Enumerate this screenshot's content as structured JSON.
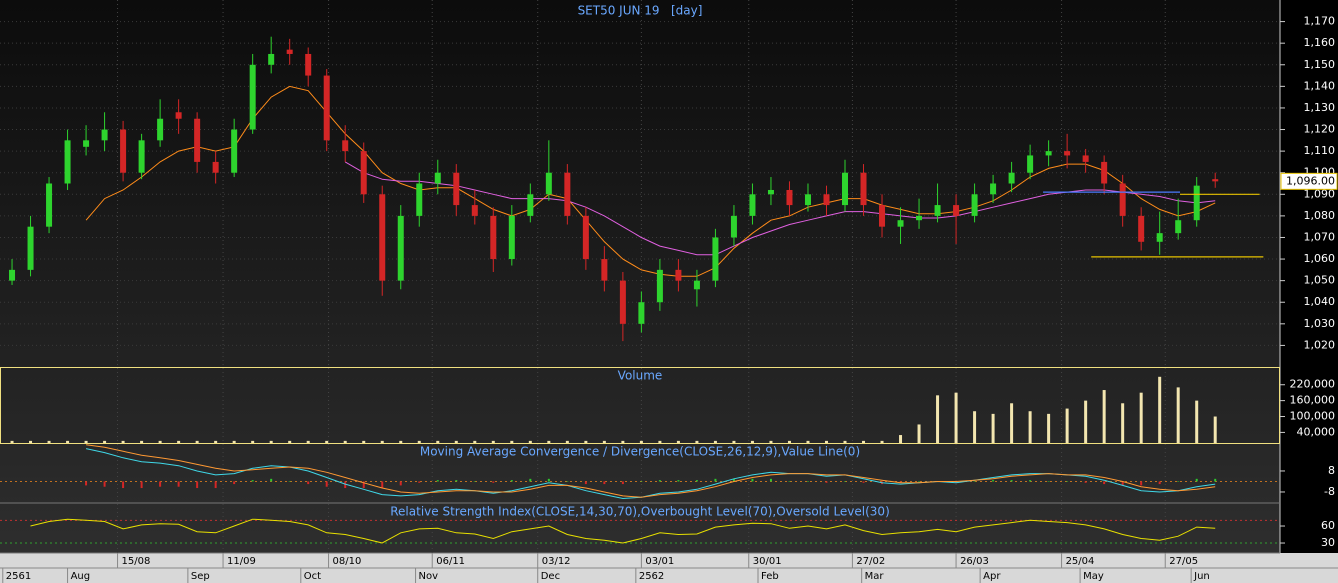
{
  "chart_data": [
    {
      "type": "candlestick",
      "title": "SET50 JUN 19   [day]",
      "candles": [
        [
          1050,
          1060,
          1048,
          1055
        ],
        [
          1055,
          1080,
          1052,
          1075
        ],
        [
          1075,
          1098,
          1072,
          1095
        ],
        [
          1095,
          1120,
          1092,
          1115
        ],
        [
          1112,
          1122,
          1108,
          1115
        ],
        [
          1115,
          1128,
          1110,
          1120
        ],
        [
          1120,
          1124,
          1096,
          1100
        ],
        [
          1100,
          1118,
          1097,
          1115
        ],
        [
          1115,
          1134,
          1112,
          1125
        ],
        [
          1128,
          1134,
          1118,
          1125
        ],
        [
          1125,
          1128,
          1100,
          1105
        ],
        [
          1105,
          1110,
          1095,
          1100
        ],
        [
          1100,
          1125,
          1098,
          1120
        ],
        [
          1120,
          1155,
          1118,
          1150
        ],
        [
          1150,
          1163,
          1146,
          1155
        ],
        [
          1157,
          1162,
          1150,
          1155
        ],
        [
          1155,
          1158,
          1140,
          1145
        ],
        [
          1145,
          1148,
          1110,
          1115
        ],
        [
          1115,
          1122,
          1105,
          1110
        ],
        [
          1110,
          1114,
          1086,
          1090
        ],
        [
          1090,
          1094,
          1043,
          1050
        ],
        [
          1050,
          1085,
          1046,
          1080
        ],
        [
          1080,
          1100,
          1075,
          1095
        ],
        [
          1095,
          1106,
          1090,
          1100
        ],
        [
          1100,
          1104,
          1080,
          1085
        ],
        [
          1085,
          1092,
          1076,
          1080
        ],
        [
          1080,
          1084,
          1054,
          1060
        ],
        [
          1060,
          1085,
          1057,
          1080
        ],
        [
          1080,
          1095,
          1077,
          1090
        ],
        [
          1090,
          1115,
          1087,
          1100
        ],
        [
          1100,
          1104,
          1076,
          1080
        ],
        [
          1080,
          1084,
          1055,
          1060
        ],
        [
          1060,
          1066,
          1045,
          1050
        ],
        [
          1050,
          1054,
          1022,
          1030
        ],
        [
          1030,
          1045,
          1026,
          1040
        ],
        [
          1040,
          1060,
          1036,
          1055
        ],
        [
          1055,
          1060,
          1045,
          1050
        ],
        [
          1046,
          1055,
          1038,
          1050
        ],
        [
          1050,
          1074,
          1047,
          1070
        ],
        [
          1070,
          1085,
          1066,
          1080
        ],
        [
          1080,
          1095,
          1076,
          1090
        ],
        [
          1090,
          1098,
          1085,
          1092
        ],
        [
          1092,
          1096,
          1080,
          1085
        ],
        [
          1085,
          1095,
          1082,
          1090
        ],
        [
          1090,
          1094,
          1080,
          1085
        ],
        [
          1085,
          1106,
          1082,
          1100
        ],
        [
          1100,
          1104,
          1080,
          1085
        ],
        [
          1085,
          1090,
          1070,
          1075
        ],
        [
          1075,
          1084,
          1067,
          1078
        ],
        [
          1078,
          1088,
          1074,
          1080
        ],
        [
          1080,
          1095,
          1077,
          1085
        ],
        [
          1085,
          1090,
          1067,
          1080
        ],
        [
          1080,
          1095,
          1077,
          1090
        ],
        [
          1090,
          1099,
          1086,
          1095
        ],
        [
          1095,
          1105,
          1091,
          1100
        ],
        [
          1100,
          1113,
          1097,
          1108
        ],
        [
          1108,
          1115,
          1103,
          1110
        ],
        [
          1110,
          1118,
          1102,
          1108
        ],
        [
          1108,
          1111,
          1100,
          1105
        ],
        [
          1105,
          1108,
          1090,
          1095
        ],
        [
          1095,
          1099,
          1075,
          1080
        ],
        [
          1080,
          1084,
          1064,
          1068
        ],
        [
          1068,
          1082,
          1062,
          1072
        ],
        [
          1072,
          1088,
          1069,
          1078
        ],
        [
          1078,
          1098,
          1075,
          1094
        ],
        [
          1097,
          1100,
          1093,
          1096
        ]
      ],
      "up_color": "#2ed42e",
      "down_color": "#d42626",
      "lines": [
        {
          "color": "#ff8c1a",
          "values": [
            null,
            null,
            null,
            null,
            1078,
            1088,
            1092,
            1098,
            1105,
            1110,
            1112,
            1110,
            1112,
            1125,
            1135,
            1140,
            1138,
            1128,
            1118,
            1110,
            1100,
            1095,
            1092,
            1093,
            1093,
            1088,
            1083,
            1080,
            1083,
            1090,
            1088,
            1078,
            1068,
            1060,
            1055,
            1053,
            1052,
            1052,
            1056,
            1065,
            1072,
            1078,
            1080,
            1084,
            1086,
            1088,
            1088,
            1085,
            1083,
            1081,
            1081,
            1082,
            1084,
            1087,
            1092,
            1098,
            1102,
            1104,
            1104,
            1101,
            1095,
            1088,
            1083,
            1080,
            1082,
            1086
          ]
        },
        {
          "color": "#e060e0",
          "values": [
            null,
            null,
            null,
            null,
            null,
            null,
            null,
            null,
            null,
            null,
            null,
            null,
            null,
            null,
            null,
            null,
            null,
            null,
            1105,
            1100,
            1097,
            1096,
            1096,
            1095,
            1094,
            1092,
            1090,
            1088,
            1088,
            1088,
            1087,
            1084,
            1080,
            1075,
            1070,
            1066,
            1064,
            1062,
            1062,
            1066,
            1070,
            1073,
            1076,
            1078,
            1080,
            1082,
            1082,
            1081,
            1080,
            1079,
            1079,
            1080,
            1082,
            1084,
            1086,
            1088,
            1090,
            1091,
            1092,
            1092,
            1091,
            1090,
            1089,
            1087,
            1086,
            1087
          ]
        }
      ],
      "levels": [
        {
          "value": 1091,
          "from": 55.7,
          "to": 63.1,
          "color": "#4a7bff"
        },
        {
          "value": 1090,
          "from": 63.1,
          "to": 67.4,
          "color": "#e6c200"
        },
        {
          "value": 1061,
          "from": 58.3,
          "to": 67.6,
          "color": "#e6c200"
        }
      ],
      "last_price": {
        "value": 1096,
        "label": "1,096.00"
      },
      "xlim": [
        -0.65,
        68.5
      ],
      "ylim": [
        1010,
        1180
      ],
      "yticks": [
        {
          "value": 1020,
          "label": "1,020"
        },
        {
          "value": 1030,
          "label": "1,030"
        },
        {
          "value": 1040,
          "label": "1,040"
        },
        {
          "value": 1050,
          "label": "1,050"
        },
        {
          "value": 1060,
          "label": "1,060"
        },
        {
          "value": 1070,
          "label": "1,070"
        },
        {
          "value": 1080,
          "label": "1,080"
        },
        {
          "value": 1090,
          "label": "1,090"
        },
        {
          "value": 1100,
          "label": "1,100"
        },
        {
          "value": 1110,
          "label": "1,110"
        },
        {
          "value": 1120,
          "label": "1,120"
        },
        {
          "value": 1130,
          "label": "1,130"
        },
        {
          "value": 1140,
          "label": "1,140"
        },
        {
          "value": 1150,
          "label": "1,150"
        },
        {
          "value": 1160,
          "label": "1,160"
        },
        {
          "value": 1170,
          "label": "1,170"
        }
      ],
      "xticks": [
        {
          "value": 5.7,
          "label": "15/08"
        },
        {
          "value": 11.4,
          "label": "11/09"
        },
        {
          "value": 17.1,
          "label": "08/10"
        },
        {
          "value": 22.7,
          "label": "06/11"
        },
        {
          "value": 28.4,
          "label": "03/12"
        },
        {
          "value": 34.0,
          "label": "03/01"
        },
        {
          "value": 39.8,
          "label": "30/01"
        },
        {
          "value": 45.4,
          "label": "27/02"
        },
        {
          "value": 51.0,
          "label": "26/03"
        },
        {
          "value": 56.7,
          "label": "25/04"
        },
        {
          "value": 62.3,
          "label": "27/05"
        }
      ],
      "xticks_secondary": [
        {
          "value": -0.5,
          "label": "2561"
        },
        {
          "value": 3.0,
          "label": "Aug"
        },
        {
          "value": 9.5,
          "label": "Sep"
        },
        {
          "value": 15.6,
          "label": "Oct"
        },
        {
          "value": 21.8,
          "label": "Nov"
        },
        {
          "value": 28.4,
          "label": "Dec"
        },
        {
          "value": 33.7,
          "label": "2562"
        },
        {
          "value": 40.3,
          "label": "Feb"
        },
        {
          "value": 45.9,
          "label": "Mar"
        },
        {
          "value": 52.3,
          "label": "Apr"
        },
        {
          "value": 57.7,
          "label": "May"
        },
        {
          "value": 63.7,
          "label": "Jun"
        }
      ]
    },
    {
      "type": "bar",
      "title": "Volume",
      "color": "#f3e6b0",
      "values": [
        8000,
        8000,
        8000,
        8000,
        8000,
        8000,
        8000,
        8000,
        8000,
        8000,
        8000,
        8000,
        8000,
        8000,
        8000,
        8000,
        8000,
        8000,
        8000,
        8000,
        8000,
        8000,
        8000,
        8000,
        8000,
        8000,
        8000,
        8000,
        8000,
        8000,
        8000,
        8000,
        8000,
        8000,
        8000,
        8000,
        8000,
        8000,
        8000,
        8000,
        8000,
        8000,
        8000,
        8000,
        8000,
        8000,
        8000,
        8000,
        30000,
        70000,
        180000,
        190000,
        120000,
        110000,
        150000,
        120000,
        110000,
        130000,
        160000,
        200000,
        150000,
        190000,
        250000,
        210000,
        160000,
        100000
      ],
      "ylim": [
        0,
        287000
      ],
      "yticks": [
        {
          "value": 40000,
          "label": "40,000"
        },
        {
          "value": 100000,
          "label": "100,000"
        },
        {
          "value": 160000,
          "label": "160,000"
        },
        {
          "value": 220000,
          "label": "220,000"
        }
      ]
    },
    {
      "type": "macd",
      "title": "Moving Average Convergence / Divergence(CLOSE,26,12,9),Value Line(0)",
      "series": [
        {
          "color": "#3fd8e8",
          "values": [
            null,
            null,
            null,
            null,
            25,
            22,
            18,
            15,
            14,
            12,
            8,
            5,
            6,
            10,
            12,
            11,
            8,
            3,
            -2,
            -6,
            -10,
            -11,
            -10,
            -7,
            -6,
            -7,
            -9,
            -7,
            -4,
            -1,
            -3,
            -7,
            -10,
            -13,
            -12,
            -9,
            -8,
            -6,
            -2,
            2,
            5,
            7,
            6,
            6,
            4,
            5,
            2,
            -1,
            -2,
            -1,
            0,
            -1,
            1,
            3,
            5,
            6,
            6,
            5,
            4,
            1,
            -3,
            -7,
            -8,
            -7,
            -4,
            -2
          ]
        },
        {
          "color": "#ff9933",
          "values": [
            null,
            null,
            null,
            null,
            28,
            26,
            23,
            20,
            18,
            16,
            13,
            10,
            8,
            9,
            10,
            11,
            10,
            7,
            3,
            -1,
            -5,
            -8,
            -9,
            -8,
            -7,
            -7,
            -8,
            -8,
            -6,
            -3,
            -3,
            -5,
            -8,
            -11,
            -12,
            -10,
            -9,
            -7,
            -4,
            0,
            3,
            5,
            6,
            6,
            5,
            5,
            3,
            1,
            -1,
            -1,
            0,
            0,
            1,
            2,
            4,
            5,
            6,
            5,
            5,
            3,
            0,
            -4,
            -6,
            -7,
            -6,
            -4
          ]
        }
      ],
      "histogram": [
        null,
        null,
        null,
        null,
        -3,
        -4,
        -5,
        -5,
        -4,
        -4,
        -5,
        -5,
        -2,
        1,
        2,
        0,
        -2,
        -4,
        -5,
        -5,
        -5,
        -3,
        -1,
        1,
        1,
        0,
        -1,
        1,
        2,
        2,
        0,
        -2,
        -2,
        -2,
        0,
        1,
        1,
        1,
        2,
        2,
        2,
        2,
        0,
        0,
        -1,
        0,
        -1,
        -2,
        -1,
        0,
        0,
        -1,
        0,
        1,
        1,
        1,
        0,
        0,
        -1,
        -2,
        -3,
        -3,
        -2,
        0,
        2,
        2
      ],
      "histogram_colors": [
        "#2ec82e",
        "#d42626"
      ],
      "value_line": 0,
      "ylim": [
        -16.4,
        29.3
      ],
      "yticks": [
        -8,
        8
      ]
    },
    {
      "type": "line",
      "title": "Relative Strength Index(CLOSE,14,30,70),Overbought Level(70),Oversold Level(30)",
      "color": "#e8e000",
      "values": [
        null,
        60,
        68,
        72,
        70,
        68,
        55,
        62,
        64,
        63,
        50,
        48,
        60,
        72,
        70,
        68,
        62,
        48,
        45,
        38,
        30,
        48,
        55,
        56,
        48,
        46,
        38,
        50,
        55,
        60,
        45,
        38,
        35,
        30,
        38,
        48,
        45,
        46,
        58,
        62,
        65,
        64,
        56,
        60,
        55,
        62,
        52,
        45,
        48,
        50,
        54,
        50,
        58,
        62,
        66,
        70,
        68,
        66,
        62,
        55,
        45,
        38,
        35,
        42,
        58,
        56
      ],
      "levels": [
        {
          "value": 70,
          "color": "#c03030"
        },
        {
          "value": 30,
          "color": "#30a030"
        }
      ],
      "ylim": [
        12.4,
        100.6
      ],
      "yticks": [
        30,
        60
      ]
    }
  ]
}
